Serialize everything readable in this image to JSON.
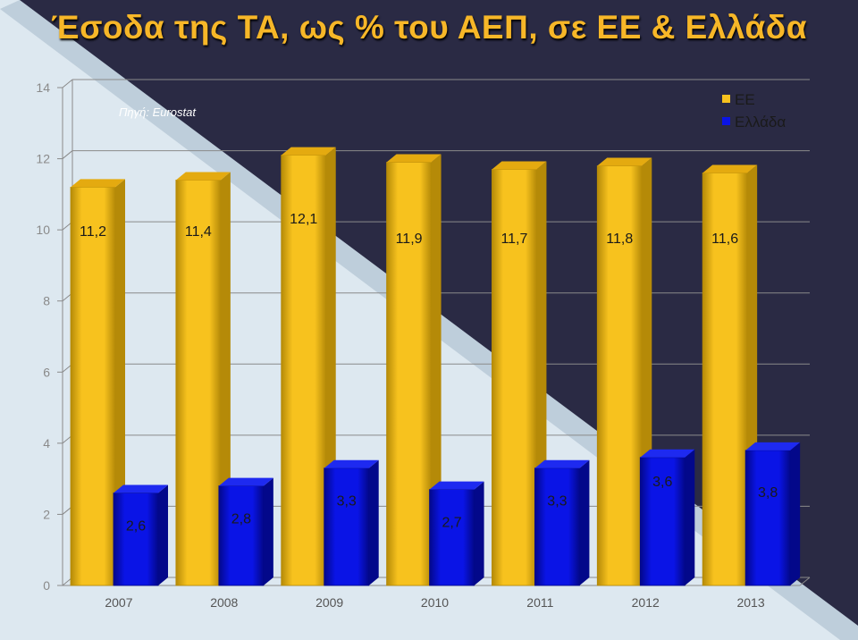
{
  "page": {
    "title": "Έσοδα της ΤΑ, ως % του ΑΕΠ, σε ΕΕ & Ελλάδα",
    "source": "Πηγή: Eurostat"
  },
  "colors": {
    "background_dark": "#2a2a44",
    "background_light": "#dde8f0",
    "title": "#f7b728",
    "eu_front": "#f7c21e",
    "eu_side": "#b58a08",
    "eu_top": "#e4aa10",
    "greece_front": "#0a14e6",
    "greece_side": "#03088a",
    "greece_top": "#1e2af0"
  },
  "chart_data": {
    "type": "bar",
    "title": "Έσοδα της ΤΑ, ως % του ΑΕΠ, σε ΕΕ & Ελλάδα",
    "categories": [
      "2007",
      "2008",
      "2009",
      "2010",
      "2011",
      "2012",
      "2013"
    ],
    "series": [
      {
        "name": "ΕΕ",
        "values": [
          11.2,
          11.4,
          12.1,
          11.9,
          11.7,
          11.8,
          11.6
        ],
        "labels": [
          "11,2",
          "11,4",
          "12,1",
          "11,9",
          "11,7",
          "11,8",
          "11,6"
        ]
      },
      {
        "name": "Ελλάδα",
        "values": [
          2.6,
          2.8,
          3.3,
          2.7,
          3.3,
          3.6,
          3.8
        ],
        "labels": [
          "2,6",
          "2,8",
          "3,3",
          "2,7",
          "3,3",
          "3,6",
          "3,8"
        ]
      }
    ],
    "ylim": [
      0,
      14
    ],
    "yticks": [
      "0",
      "2",
      "4",
      "6",
      "8",
      "10",
      "12",
      "14"
    ],
    "grid": true,
    "legend": "top-right",
    "three_d": true
  }
}
